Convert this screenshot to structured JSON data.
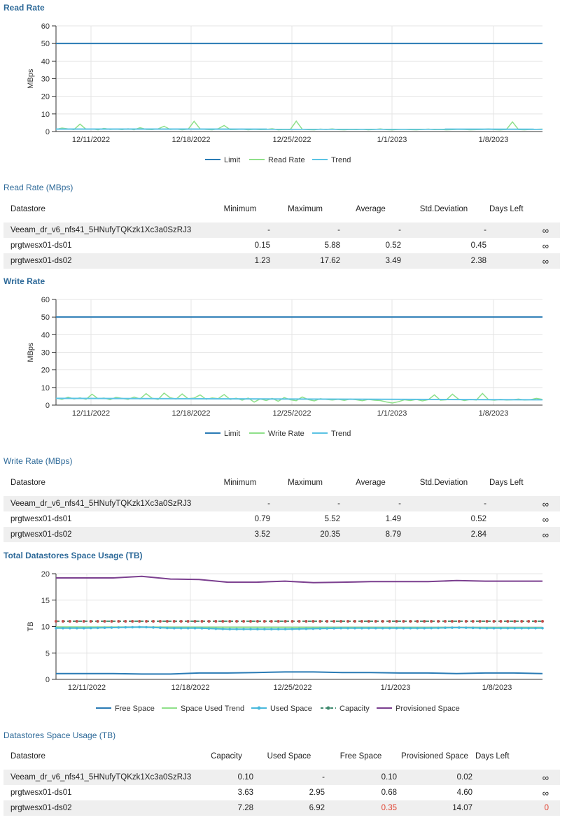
{
  "read_rate": {
    "title": "Read Rate",
    "table_title": "Read Rate (MBps)",
    "chart_data": {
      "type": "line",
      "ylabel": "MBps",
      "ylim": [
        0,
        60
      ],
      "yticks": [
        "0",
        "10",
        "20",
        "30",
        "40",
        "50",
        "60"
      ],
      "xlabels": [
        "12/11/2022",
        "12/18/2022",
        "12/25/2022",
        "1/1/2023",
        "1/8/2023"
      ],
      "limit": 50,
      "trend": [
        1.4,
        1.3
      ],
      "series_values": [
        1.2,
        2.0,
        1.5,
        1.1,
        4.2,
        1.3,
        1.5,
        1.0,
        1.8,
        1.2,
        1.4,
        1.1,
        1.6,
        1.0,
        2.2,
        1.2,
        1.1,
        1.5,
        3.0,
        1.2,
        1.4,
        1.0,
        1.3,
        5.8,
        1.5,
        1.2,
        1.0,
        1.6,
        3.4,
        1.1,
        1.2,
        1.4,
        1.0,
        1.3,
        1.1,
        1.2,
        1.6,
        1.0,
        1.2,
        1.1,
        5.9,
        1.3,
        1.1,
        1.0,
        1.4,
        1.2,
        1.5,
        1.1,
        1.0,
        1.2,
        1.1,
        1.3,
        1.0,
        1.2,
        1.5,
        1.1,
        1.0,
        1.2,
        1.3,
        1.1,
        1.0,
        1.2,
        1.4,
        1.1,
        1.2,
        1.0,
        1.1,
        1.3,
        1.2,
        1.0,
        1.1,
        1.2,
        1.5,
        1.1,
        1.0,
        1.2,
        5.5,
        1.1,
        1.0,
        1.2,
        1.3,
        1.4
      ],
      "legend": [
        {
          "label": "Limit",
          "color": "#2a7bb5"
        },
        {
          "label": "Read Rate",
          "color": "#8fe08a"
        },
        {
          "label": "Trend",
          "color": "#5bc3e4"
        }
      ]
    },
    "columns": [
      "Datastore",
      "Minimum",
      "Maximum",
      "Average",
      "Std.Deviation",
      "Days Left"
    ],
    "rows": [
      [
        "Veeam_dr_v6_nfs41_5HNufyTQKzk1Xc3a0SzRJ3",
        "-",
        "-",
        "-",
        "-",
        "∞"
      ],
      [
        "prgtwesx01-ds01",
        "0.15",
        "5.88",
        "0.52",
        "0.45",
        "∞"
      ],
      [
        "prgtwesx01-ds02",
        "1.23",
        "17.62",
        "3.49",
        "2.38",
        "∞"
      ]
    ]
  },
  "write_rate": {
    "title": "Write Rate",
    "table_title": "Write Rate (MBps)",
    "chart_data": {
      "type": "line",
      "ylabel": "MBps",
      "ylim": [
        0,
        60
      ],
      "yticks": [
        "0",
        "10",
        "20",
        "30",
        "40",
        "50",
        "60"
      ],
      "xlabels": [
        "12/11/2022",
        "12/18/2022",
        "12/25/2022",
        "1/1/2023",
        "1/8/2023"
      ],
      "limit": 50,
      "trend": [
        3.8,
        3.0
      ],
      "series_values": [
        4.0,
        3.2,
        4.5,
        3.5,
        4.1,
        3.3,
        6.2,
        3.6,
        4.0,
        3.1,
        4.4,
        3.8,
        3.2,
        4.6,
        3.5,
        6.5,
        3.9,
        3.2,
        6.8,
        4.2,
        3.4,
        6.3,
        3.6,
        4.0,
        5.8,
        3.3,
        4.1,
        3.7,
        6.0,
        3.2,
        3.9,
        2.8,
        4.0,
        1.7,
        3.5,
        2.6,
        3.8,
        2.2,
        4.3,
        3.0,
        2.5,
        4.6,
        3.1,
        2.4,
        3.6,
        3.2,
        2.9,
        3.3,
        2.7,
        3.4,
        3.0,
        2.5,
        3.2,
        2.8,
        2.6,
        1.8,
        1.2,
        1.9,
        3.0,
        2.6,
        3.2,
        2.4,
        3.1,
        5.8,
        2.8,
        3.0,
        6.2,
        3.4,
        2.6,
        3.2,
        2.9,
        6.6,
        3.1,
        2.8,
        3.3,
        2.9,
        3.0,
        3.4,
        2.9,
        3.1,
        3.8,
        3.2
      ],
      "legend": [
        {
          "label": "Limit",
          "color": "#2a7bb5"
        },
        {
          "label": "Write Rate",
          "color": "#8fe08a"
        },
        {
          "label": "Trend",
          "color": "#5bc3e4"
        }
      ]
    },
    "columns": [
      "Datastore",
      "Minimum",
      "Maximum",
      "Average",
      "Std.Deviation",
      "Days Left"
    ],
    "rows": [
      [
        "Veeam_dr_v6_nfs41_5HNufyTQKzk1Xc3a0SzRJ3",
        "-",
        "-",
        "-",
        "-",
        "∞"
      ],
      [
        "prgtwesx01-ds01",
        "0.79",
        "5.52",
        "1.49",
        "0.52",
        "∞"
      ],
      [
        "prgtwesx01-ds02",
        "3.52",
        "20.35",
        "8.79",
        "2.84",
        "∞"
      ]
    ]
  },
  "space_usage": {
    "title": "Total Datastores Space Usage (TB)",
    "table_title": "Datastores Space Usage (TB)",
    "chart_data": {
      "type": "line",
      "ylabel": "TB",
      "ylim": [
        0,
        20
      ],
      "yticks": [
        "0",
        "5",
        "10",
        "15",
        "20"
      ],
      "xlabels": [
        "12/11/2022",
        "12/18/2022",
        "12/25/2022",
        "1/1/2023",
        "1/8/2023"
      ],
      "series": [
        {
          "name": "Free Space",
          "color": "#2a7bb5",
          "values": [
            1.1,
            1.1,
            1.1,
            1.0,
            1.0,
            1.2,
            1.2,
            1.3,
            1.4,
            1.4,
            1.3,
            1.3,
            1.2,
            1.2,
            1.1,
            1.2,
            1.2,
            1.1
          ]
        },
        {
          "name": "Space Used Trend",
          "color": "#8fe08a",
          "values": [
            9.9,
            9.8
          ]
        },
        {
          "name": "Used Space",
          "color": "#48b8dc",
          "values": [
            9.7,
            9.7,
            9.8,
            9.9,
            9.7,
            9.7,
            9.5,
            9.5,
            9.5,
            9.6,
            9.7,
            9.7,
            9.7,
            9.7,
            9.8,
            9.7,
            9.7,
            9.7
          ]
        },
        {
          "name": "Capacity",
          "color": "#3f8a6e",
          "values": [
            11.0,
            11.0
          ]
        },
        {
          "name": "Provisioned Space",
          "color": "#7b3f8f",
          "values": [
            19.2,
            19.2,
            19.2,
            19.5,
            19.0,
            18.9,
            18.4,
            18.4,
            18.6,
            18.3,
            18.4,
            18.5,
            18.5,
            18.5,
            18.7,
            18.6,
            18.6,
            18.6
          ]
        }
      ]
    },
    "columns": [
      "Datastore",
      "Capacity",
      "Used Space",
      "Free Space",
      "Provisioned Space",
      "Days Left"
    ],
    "rows": [
      [
        "Veeam_dr_v6_nfs41_5HNufyTQKzk1Xc3a0SzRJ3",
        "0.10",
        "-",
        "0.10",
        "0.02",
        "∞"
      ],
      [
        "prgtwesx01-ds01",
        "3.63",
        "2.95",
        "0.68",
        "4.60",
        "∞"
      ],
      [
        "prgtwesx01-ds02",
        "7.28",
        "6.92",
        "0.35",
        "14.07",
        "0"
      ]
    ]
  }
}
